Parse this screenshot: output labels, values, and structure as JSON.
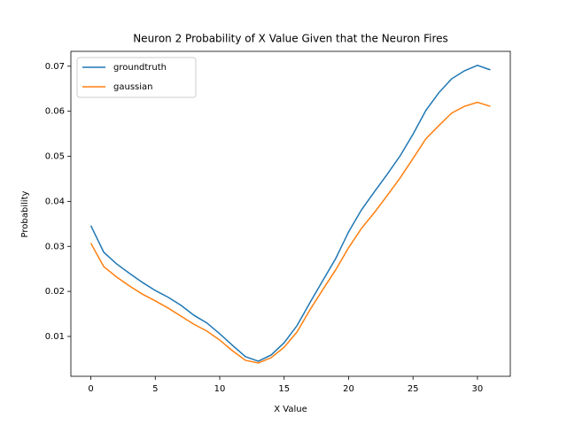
{
  "chart_data": {
    "type": "line",
    "title": "Neuron 2 Probability of X Value Given that the Neuron Fires",
    "xlabel": "X Value",
    "ylabel": "Probability",
    "x": [
      0,
      1,
      2,
      3,
      4,
      5,
      6,
      7,
      8,
      9,
      10,
      11,
      12,
      13,
      14,
      15,
      16,
      17,
      18,
      19,
      20,
      21,
      22,
      23,
      24,
      25,
      26,
      27,
      28,
      29,
      30,
      31
    ],
    "series": [
      {
        "name": "groundtruth",
        "color": "#1f77b4",
        "values": [
          0.0346,
          0.0287,
          0.0261,
          0.024,
          0.022,
          0.0202,
          0.0187,
          0.0169,
          0.0147,
          0.013,
          0.0106,
          0.008,
          0.0055,
          0.0045,
          0.0059,
          0.0086,
          0.0124,
          0.0175,
          0.0224,
          0.0273,
          0.0332,
          0.0381,
          0.0421,
          0.046,
          0.0501,
          0.0549,
          0.0602,
          0.0641,
          0.0672,
          0.069,
          0.0702,
          0.0692
        ]
      },
      {
        "name": "gaussian",
        "color": "#ff7f0e",
        "values": [
          0.0307,
          0.0255,
          0.0232,
          0.0212,
          0.0194,
          0.0179,
          0.0163,
          0.0145,
          0.0127,
          0.0112,
          0.0092,
          0.0068,
          0.0047,
          0.0041,
          0.0053,
          0.0076,
          0.011,
          0.0159,
          0.0204,
          0.0248,
          0.0297,
          0.034,
          0.0375,
          0.0413,
          0.0452,
          0.0495,
          0.0539,
          0.0568,
          0.0596,
          0.0611,
          0.062,
          0.0611
        ]
      }
    ],
    "xlim": [
      -1.55,
      32.55
    ],
    "xticks": [
      0,
      5,
      10,
      15,
      20,
      25,
      30
    ],
    "ylim": [
      0.00115,
      0.0733
    ],
    "yticks": [
      0.01,
      0.02,
      0.03,
      0.04,
      0.05,
      0.06,
      0.07
    ],
    "legend": "upper left",
    "grid": false
  }
}
